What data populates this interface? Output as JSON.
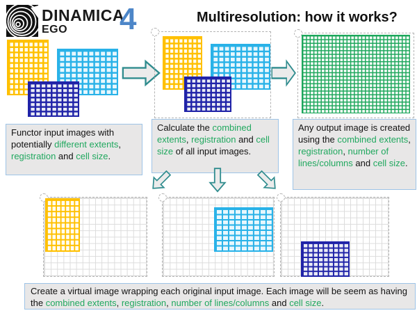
{
  "colors": {
    "yellow": "#FFC000",
    "cyan": "#29B2E8",
    "navy": "#2023A8",
    "green_grid": "#1CA65B",
    "gray_grid": "#DCDCDC",
    "teal_arrow_stroke": "#2F8C8E",
    "arrow_fill": "#EBEBEB",
    "box_bg": "#E8E7E7",
    "box_border": "#9DC3E6",
    "text_green": "#21A85F",
    "version_blue": "#4D86C8"
  },
  "header": {
    "brand": "DINAMICA",
    "brand_sub": "EGO",
    "version": "4",
    "title": "Multiresolution: how it works?"
  },
  "steps": {
    "box1_segments": [
      {
        "t": "Functor input images with potentially "
      },
      {
        "t": "different extents",
        "g": true
      },
      {
        "t": ", "
      },
      {
        "t": "registration",
        "g": true
      },
      {
        "t": " and "
      },
      {
        "t": "cell size",
        "g": true
      },
      {
        "t": "."
      }
    ],
    "box2_segments": [
      {
        "t": "Calculate the "
      },
      {
        "t": "combined extents",
        "g": true
      },
      {
        "t": ", "
      },
      {
        "t": "registration",
        "g": true
      },
      {
        "t": " and "
      },
      {
        "t": "cell size",
        "g": true
      },
      {
        "t": " of all input images."
      }
    ],
    "box3_segments": [
      {
        "t": "Any output image is created using the "
      },
      {
        "t": "combined extents",
        "g": true
      },
      {
        "t": ", "
      },
      {
        "t": "registration",
        "g": true
      },
      {
        "t": ", "
      },
      {
        "t": "number of lines/columns",
        "g": true
      },
      {
        "t": " and "
      },
      {
        "t": "cell size",
        "g": true
      },
      {
        "t": "."
      }
    ],
    "bottom_segments": [
      {
        "t": "Create a virtual image wrapping each original input image. Each image will be seem as having the "
      },
      {
        "t": "combined extents",
        "g": true
      },
      {
        "t": ", "
      },
      {
        "t": "registration",
        "g": true
      },
      {
        "t": ", "
      },
      {
        "t": "number of lines/columns",
        "g": true
      },
      {
        "t": " and "
      },
      {
        "t": "cell size",
        "g": true
      },
      {
        "t": "."
      }
    ]
  },
  "grids": {
    "p1_yellow": {
      "label": "input-image-yellow",
      "color": "#FFC000",
      "bg": "#FFFCEF",
      "cols": 8,
      "rows": 10,
      "lw": 2.5
    },
    "p1_cyan": {
      "label": "input-image-cyan",
      "color": "#29B2E8",
      "bg": "#E8F7FD",
      "cols": 10,
      "rows": 8,
      "lw": 2.5
    },
    "p1_navy": {
      "label": "input-image-navy",
      "color": "#2023A8",
      "bg": "#E9EBF5",
      "cols": 9,
      "rows": 7,
      "lw": 2.5
    },
    "p2_yellow": {
      "label": "input-image-yellow",
      "color": "#FFC000",
      "bg": "#FFFCEF",
      "cols": 8,
      "rows": 10,
      "lw": 2.5
    },
    "p2_cyan": {
      "label": "input-image-cyan",
      "color": "#29B2E8",
      "bg": "#E8F7FD",
      "cols": 10,
      "rows": 8,
      "lw": 2.5
    },
    "p2_navy": {
      "label": "input-image-navy",
      "color": "#2023A8",
      "bg": "#E9EBF5",
      "cols": 9,
      "rows": 7,
      "lw": 2.5
    },
    "p3_green": {
      "label": "output-image-green",
      "color": "#1CA65B",
      "bg": "#F4FBF6",
      "cols": 29,
      "rows": 21,
      "lw": 1.5
    },
    "bA_gray": {
      "label": "virtual-grid-gray",
      "color": "#DCDCDC",
      "bg": "#FFFFFF",
      "cols": 16,
      "rows": 12,
      "lw": 1
    },
    "bB_gray": {
      "label": "virtual-grid-gray",
      "color": "#DCDCDC",
      "bg": "#FFFFFF",
      "cols": 17,
      "rows": 12,
      "lw": 1
    },
    "bC_gray": {
      "label": "virtual-grid-gray",
      "color": "#DCDCDC",
      "bg": "#FFFFFF",
      "cols": 17,
      "rows": 12,
      "lw": 1
    },
    "bA_yellow": {
      "label": "wrapped-image-yellow",
      "color": "#FFC000",
      "bg": "#FFFCEF",
      "cols": 7,
      "rows": 9,
      "lw": 2
    },
    "bB_cyan": {
      "label": "wrapped-image-cyan",
      "color": "#29B2E8",
      "bg": "#E8F7FD",
      "cols": 9,
      "rows": 8,
      "lw": 2
    },
    "bC_navy": {
      "label": "wrapped-image-navy",
      "color": "#2023A8",
      "bg": "#E9EBF5",
      "cols": 9,
      "rows": 7,
      "lw": 2
    }
  }
}
